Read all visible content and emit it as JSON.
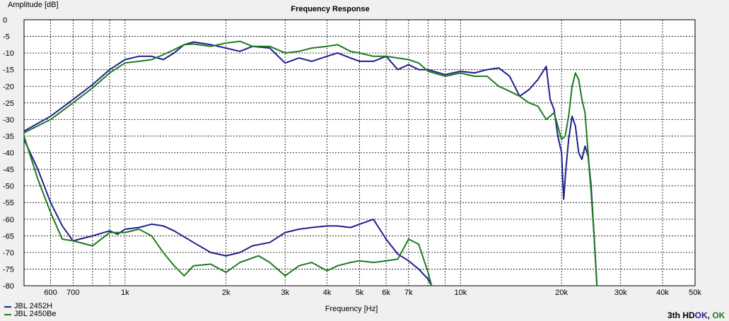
{
  "chart_data": {
    "type": "line",
    "title": "Frequency Response",
    "xlabel": "Frequency [Hz]",
    "ylabel": "Amplitude [dB]",
    "x_scale": "log",
    "xlim": [
      500,
      50000
    ],
    "ylim": [
      -80,
      0
    ],
    "grid": true,
    "legend_position": "bottom-left",
    "x_ticks": [
      {
        "v": 600,
        "label": "600"
      },
      {
        "v": 700,
        "label": "700"
      },
      {
        "v": 800,
        "label": ""
      },
      {
        "v": 900,
        "label": ""
      },
      {
        "v": 1000,
        "label": "1k"
      },
      {
        "v": 2000,
        "label": "2k"
      },
      {
        "v": 3000,
        "label": "3k"
      },
      {
        "v": 4000,
        "label": "4k"
      },
      {
        "v": 5000,
        "label": "5k"
      },
      {
        "v": 6000,
        "label": "6k"
      },
      {
        "v": 7000,
        "label": "7k"
      },
      {
        "v": 8000,
        "label": ""
      },
      {
        "v": 9000,
        "label": ""
      },
      {
        "v": 10000,
        "label": "10k"
      },
      {
        "v": 20000,
        "label": "20k"
      },
      {
        "v": 30000,
        "label": "30k"
      },
      {
        "v": 40000,
        "label": "40k"
      },
      {
        "v": 50000,
        "label": "50k"
      }
    ],
    "y_ticks": [
      0,
      -5,
      -10,
      -15,
      -20,
      -25,
      -30,
      -35,
      -40,
      -45,
      -50,
      -55,
      -60,
      -65,
      -70,
      -75,
      -80
    ],
    "series": [
      {
        "name": "JBL 2452H",
        "color": "#1f1f8f",
        "points": [
          [
            500,
            -33.5
          ],
          [
            600,
            -29
          ],
          [
            700,
            -24
          ],
          [
            800,
            -19.5
          ],
          [
            900,
            -15
          ],
          [
            1000,
            -12
          ],
          [
            1100,
            -11
          ],
          [
            1200,
            -11
          ],
          [
            1300,
            -12
          ],
          [
            1400,
            -10
          ],
          [
            1500,
            -7.5
          ],
          [
            1600,
            -6.7
          ],
          [
            1800,
            -7.5
          ],
          [
            2000,
            -8.5
          ],
          [
            2200,
            -9.5
          ],
          [
            2400,
            -8
          ],
          [
            2700,
            -8.5
          ],
          [
            3000,
            -13
          ],
          [
            3300,
            -11.5
          ],
          [
            3600,
            -12.5
          ],
          [
            4000,
            -11
          ],
          [
            4300,
            -10
          ],
          [
            4700,
            -11.5
          ],
          [
            5000,
            -12.5
          ],
          [
            5500,
            -12.5
          ],
          [
            6000,
            -11
          ],
          [
            6500,
            -15
          ],
          [
            7000,
            -13.5
          ],
          [
            7500,
            -15
          ],
          [
            8000,
            -15
          ],
          [
            9000,
            -16.5
          ],
          [
            10000,
            -15.5
          ],
          [
            11000,
            -16
          ],
          [
            12000,
            -15
          ],
          [
            13000,
            -14.5
          ],
          [
            14000,
            -17
          ],
          [
            15000,
            -23
          ],
          [
            16000,
            -21
          ],
          [
            17000,
            -18
          ],
          [
            18000,
            -14
          ],
          [
            18500,
            -24
          ],
          [
            19000,
            -27
          ],
          [
            19500,
            -35
          ],
          [
            20000,
            -40
          ],
          [
            20300,
            -54
          ],
          [
            20600,
            -45
          ],
          [
            21000,
            -36
          ],
          [
            21500,
            -29
          ],
          [
            22000,
            -32
          ],
          [
            22500,
            -40
          ],
          [
            23000,
            -42
          ],
          [
            23500,
            -38
          ],
          [
            24000,
            -41
          ],
          [
            24500,
            -50
          ],
          [
            25000,
            -65
          ],
          [
            25500,
            -80
          ]
        ]
      },
      {
        "name": "JBL 2450Be",
        "color": "#1f7a1f",
        "points": [
          [
            500,
            -34
          ],
          [
            600,
            -30
          ],
          [
            700,
            -25
          ],
          [
            800,
            -20.5
          ],
          [
            900,
            -16
          ],
          [
            1000,
            -13
          ],
          [
            1100,
            -12.5
          ],
          [
            1200,
            -12
          ],
          [
            1300,
            -10.5
          ],
          [
            1400,
            -9
          ],
          [
            1500,
            -7.5
          ],
          [
            1600,
            -7.3
          ],
          [
            1800,
            -8
          ],
          [
            2000,
            -7
          ],
          [
            2200,
            -6.5
          ],
          [
            2400,
            -8
          ],
          [
            2700,
            -8
          ],
          [
            3000,
            -10
          ],
          [
            3300,
            -9.5
          ],
          [
            3600,
            -8.5
          ],
          [
            4000,
            -8
          ],
          [
            4300,
            -7.5
          ],
          [
            4700,
            -9.5
          ],
          [
            5000,
            -10
          ],
          [
            5500,
            -11
          ],
          [
            6000,
            -11
          ],
          [
            6500,
            -11.5
          ],
          [
            7000,
            -12
          ],
          [
            7500,
            -13
          ],
          [
            8000,
            -15.5
          ],
          [
            9000,
            -17
          ],
          [
            10000,
            -16
          ],
          [
            11000,
            -17
          ],
          [
            12000,
            -17
          ],
          [
            13000,
            -20
          ],
          [
            14000,
            -21.5
          ],
          [
            15000,
            -23
          ],
          [
            16000,
            -25
          ],
          [
            17000,
            -26
          ],
          [
            18000,
            -30
          ],
          [
            19000,
            -28
          ],
          [
            20000,
            -36
          ],
          [
            20500,
            -35
          ],
          [
            21000,
            -29
          ],
          [
            21500,
            -20
          ],
          [
            22000,
            -16
          ],
          [
            22500,
            -18
          ],
          [
            23000,
            -24
          ],
          [
            23500,
            -28
          ],
          [
            24000,
            -40
          ],
          [
            24500,
            -52
          ],
          [
            25000,
            -65
          ],
          [
            25500,
            -80
          ]
        ]
      },
      {
        "name": "",
        "color": "#1f1f8f",
        "points": [
          [
            500,
            -36
          ],
          [
            550,
            -45
          ],
          [
            600,
            -55
          ],
          [
            650,
            -62
          ],
          [
            700,
            -66.5
          ],
          [
            800,
            -65
          ],
          [
            900,
            -63.5
          ],
          [
            950,
            -64.5
          ],
          [
            1000,
            -63
          ],
          [
            1100,
            -62.5
          ],
          [
            1200,
            -61.5
          ],
          [
            1300,
            -62
          ],
          [
            1400,
            -63.5
          ],
          [
            1600,
            -67
          ],
          [
            1800,
            -70
          ],
          [
            2000,
            -71
          ],
          [
            2200,
            -70
          ],
          [
            2400,
            -68
          ],
          [
            2700,
            -67
          ],
          [
            3000,
            -64
          ],
          [
            3300,
            -63
          ],
          [
            3600,
            -62.5
          ],
          [
            4000,
            -62
          ],
          [
            4300,
            -62
          ],
          [
            4700,
            -62.5
          ],
          [
            5000,
            -61.5
          ],
          [
            5500,
            -60
          ],
          [
            6000,
            -66
          ],
          [
            6500,
            -70.5
          ],
          [
            7000,
            -72.5
          ],
          [
            7500,
            -75
          ],
          [
            8000,
            -78
          ],
          [
            8200,
            -80
          ]
        ]
      },
      {
        "name": "",
        "color": "#1f7a1f",
        "points": [
          [
            500,
            -35
          ],
          [
            550,
            -48
          ],
          [
            600,
            -58
          ],
          [
            650,
            -66
          ],
          [
            700,
            -66.5
          ],
          [
            800,
            -68
          ],
          [
            900,
            -64
          ],
          [
            1000,
            -64
          ],
          [
            1100,
            -63
          ],
          [
            1200,
            -65
          ],
          [
            1300,
            -70
          ],
          [
            1400,
            -74
          ],
          [
            1500,
            -77
          ],
          [
            1600,
            -74
          ],
          [
            1800,
            -73.5
          ],
          [
            2000,
            -76
          ],
          [
            2200,
            -73
          ],
          [
            2500,
            -71
          ],
          [
            2700,
            -73
          ],
          [
            3000,
            -77
          ],
          [
            3300,
            -74
          ],
          [
            3600,
            -73
          ],
          [
            4000,
            -75.5
          ],
          [
            4300,
            -74
          ],
          [
            4700,
            -73
          ],
          [
            5000,
            -72.5
          ],
          [
            5500,
            -73
          ],
          [
            6000,
            -72.5
          ],
          [
            6500,
            -72
          ],
          [
            7000,
            -66
          ],
          [
            7500,
            -67.5
          ],
          [
            8000,
            -76
          ],
          [
            8200,
            -80
          ]
        ]
      }
    ]
  },
  "legend": {
    "items": [
      {
        "label": "JBL 2452H",
        "color": "#1f1f8f"
      },
      {
        "label": "JBL 2450Be",
        "color": "#1f7a1f"
      }
    ]
  },
  "status": {
    "prefix": "3th HD",
    "ok1": "OK",
    "ok2": "OK",
    "ok1_color": "#1f1f8f",
    "ok2_color": "#1f7a1f"
  }
}
